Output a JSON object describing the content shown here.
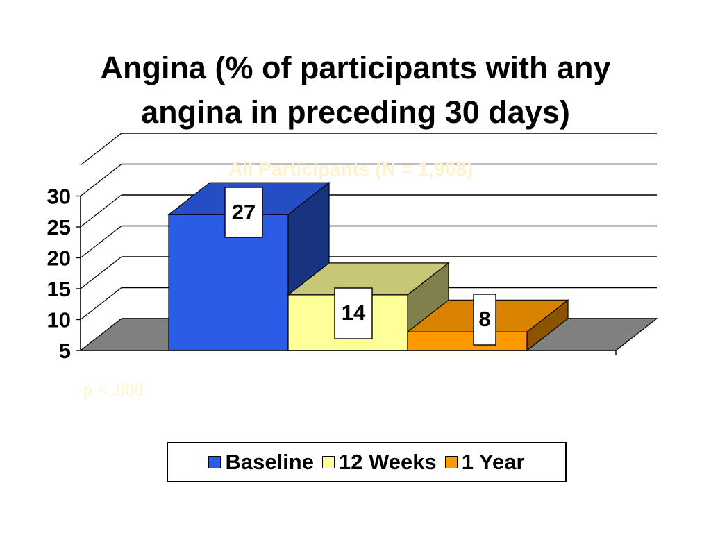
{
  "slide": {
    "title_line1": "Angina (% of participants with any",
    "title_line2": "angina in preceding 30 days)"
  },
  "chart_data": {
    "type": "bar",
    "title": "All Participants (N = 1,908)",
    "annotation": "p < .000",
    "categories": [
      "Baseline",
      "12 Weeks",
      "1 Year"
    ],
    "series": [
      {
        "name": "Baseline",
        "value": 27,
        "color": "#2b5ce6"
      },
      {
        "name": "12 Weeks",
        "value": 14,
        "color": "#ffff99"
      },
      {
        "name": "1 Year",
        "value": 8,
        "color": "#ff9900"
      }
    ],
    "data_labels": [
      "27",
      "14",
      "8"
    ],
    "ylim": [
      5,
      30
    ],
    "yticks": [
      5,
      10,
      15,
      20,
      25,
      30
    ],
    "grid": true,
    "legend_position": "bottom",
    "floor_color": "#808080",
    "faint_text_color": "#fff2cc"
  }
}
